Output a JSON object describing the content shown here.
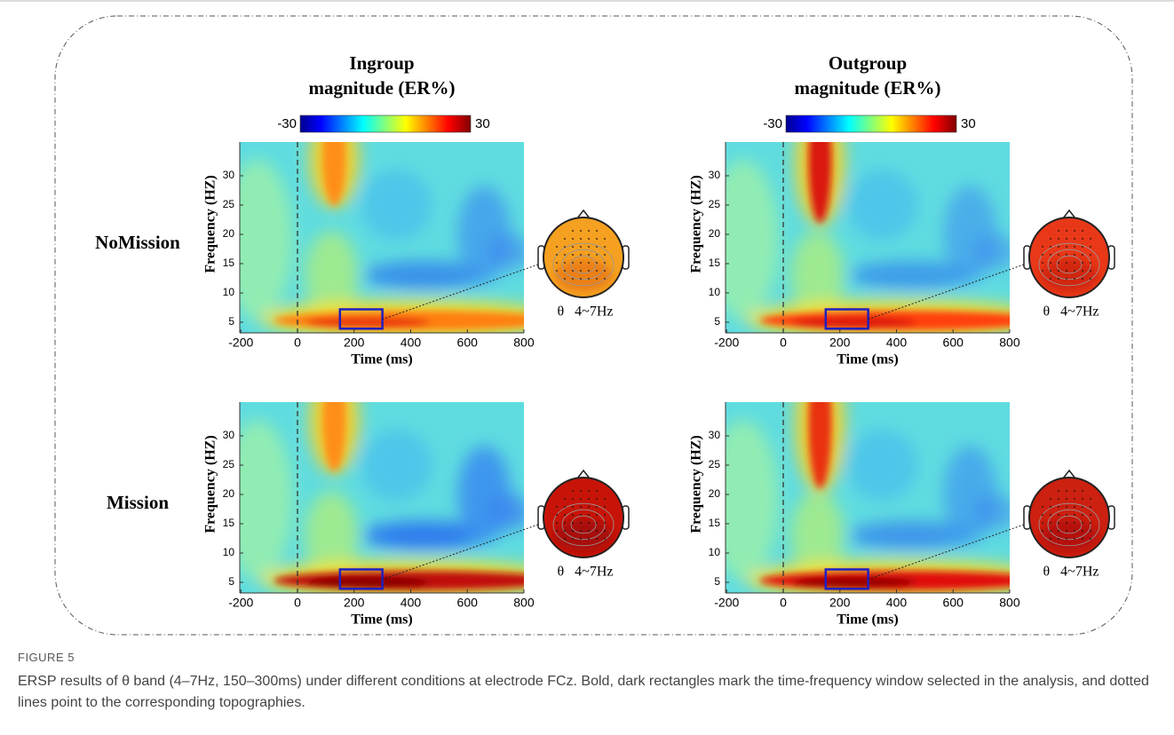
{
  "figure": {
    "column_titles": [
      [
        "Ingroup",
        "magnitude (ER%)"
      ],
      [
        "Outgroup",
        "magnitude (ER%)"
      ]
    ],
    "colorbar_labels": [
      "-30",
      "30"
    ],
    "row_labels": [
      "NoMission",
      "Mission"
    ],
    "ylabel": "Frequency (HZ)",
    "xlabel": "Time (ms)",
    "xticks": [
      -200,
      0,
      200,
      400,
      600,
      800
    ],
    "yticks": [
      30,
      25,
      20,
      15,
      10,
      5
    ],
    "topo_label": "θ   4~7Hz",
    "caption_label": "FIGURE 5",
    "caption": "ERSP results of θ band (4–7Hz, 150–300ms) under different conditions at electrode FCz. Bold, dark rectangles mark the time-frequency window selected in the analysis, and dotted lines point to the corresponding topographies."
  }
}
